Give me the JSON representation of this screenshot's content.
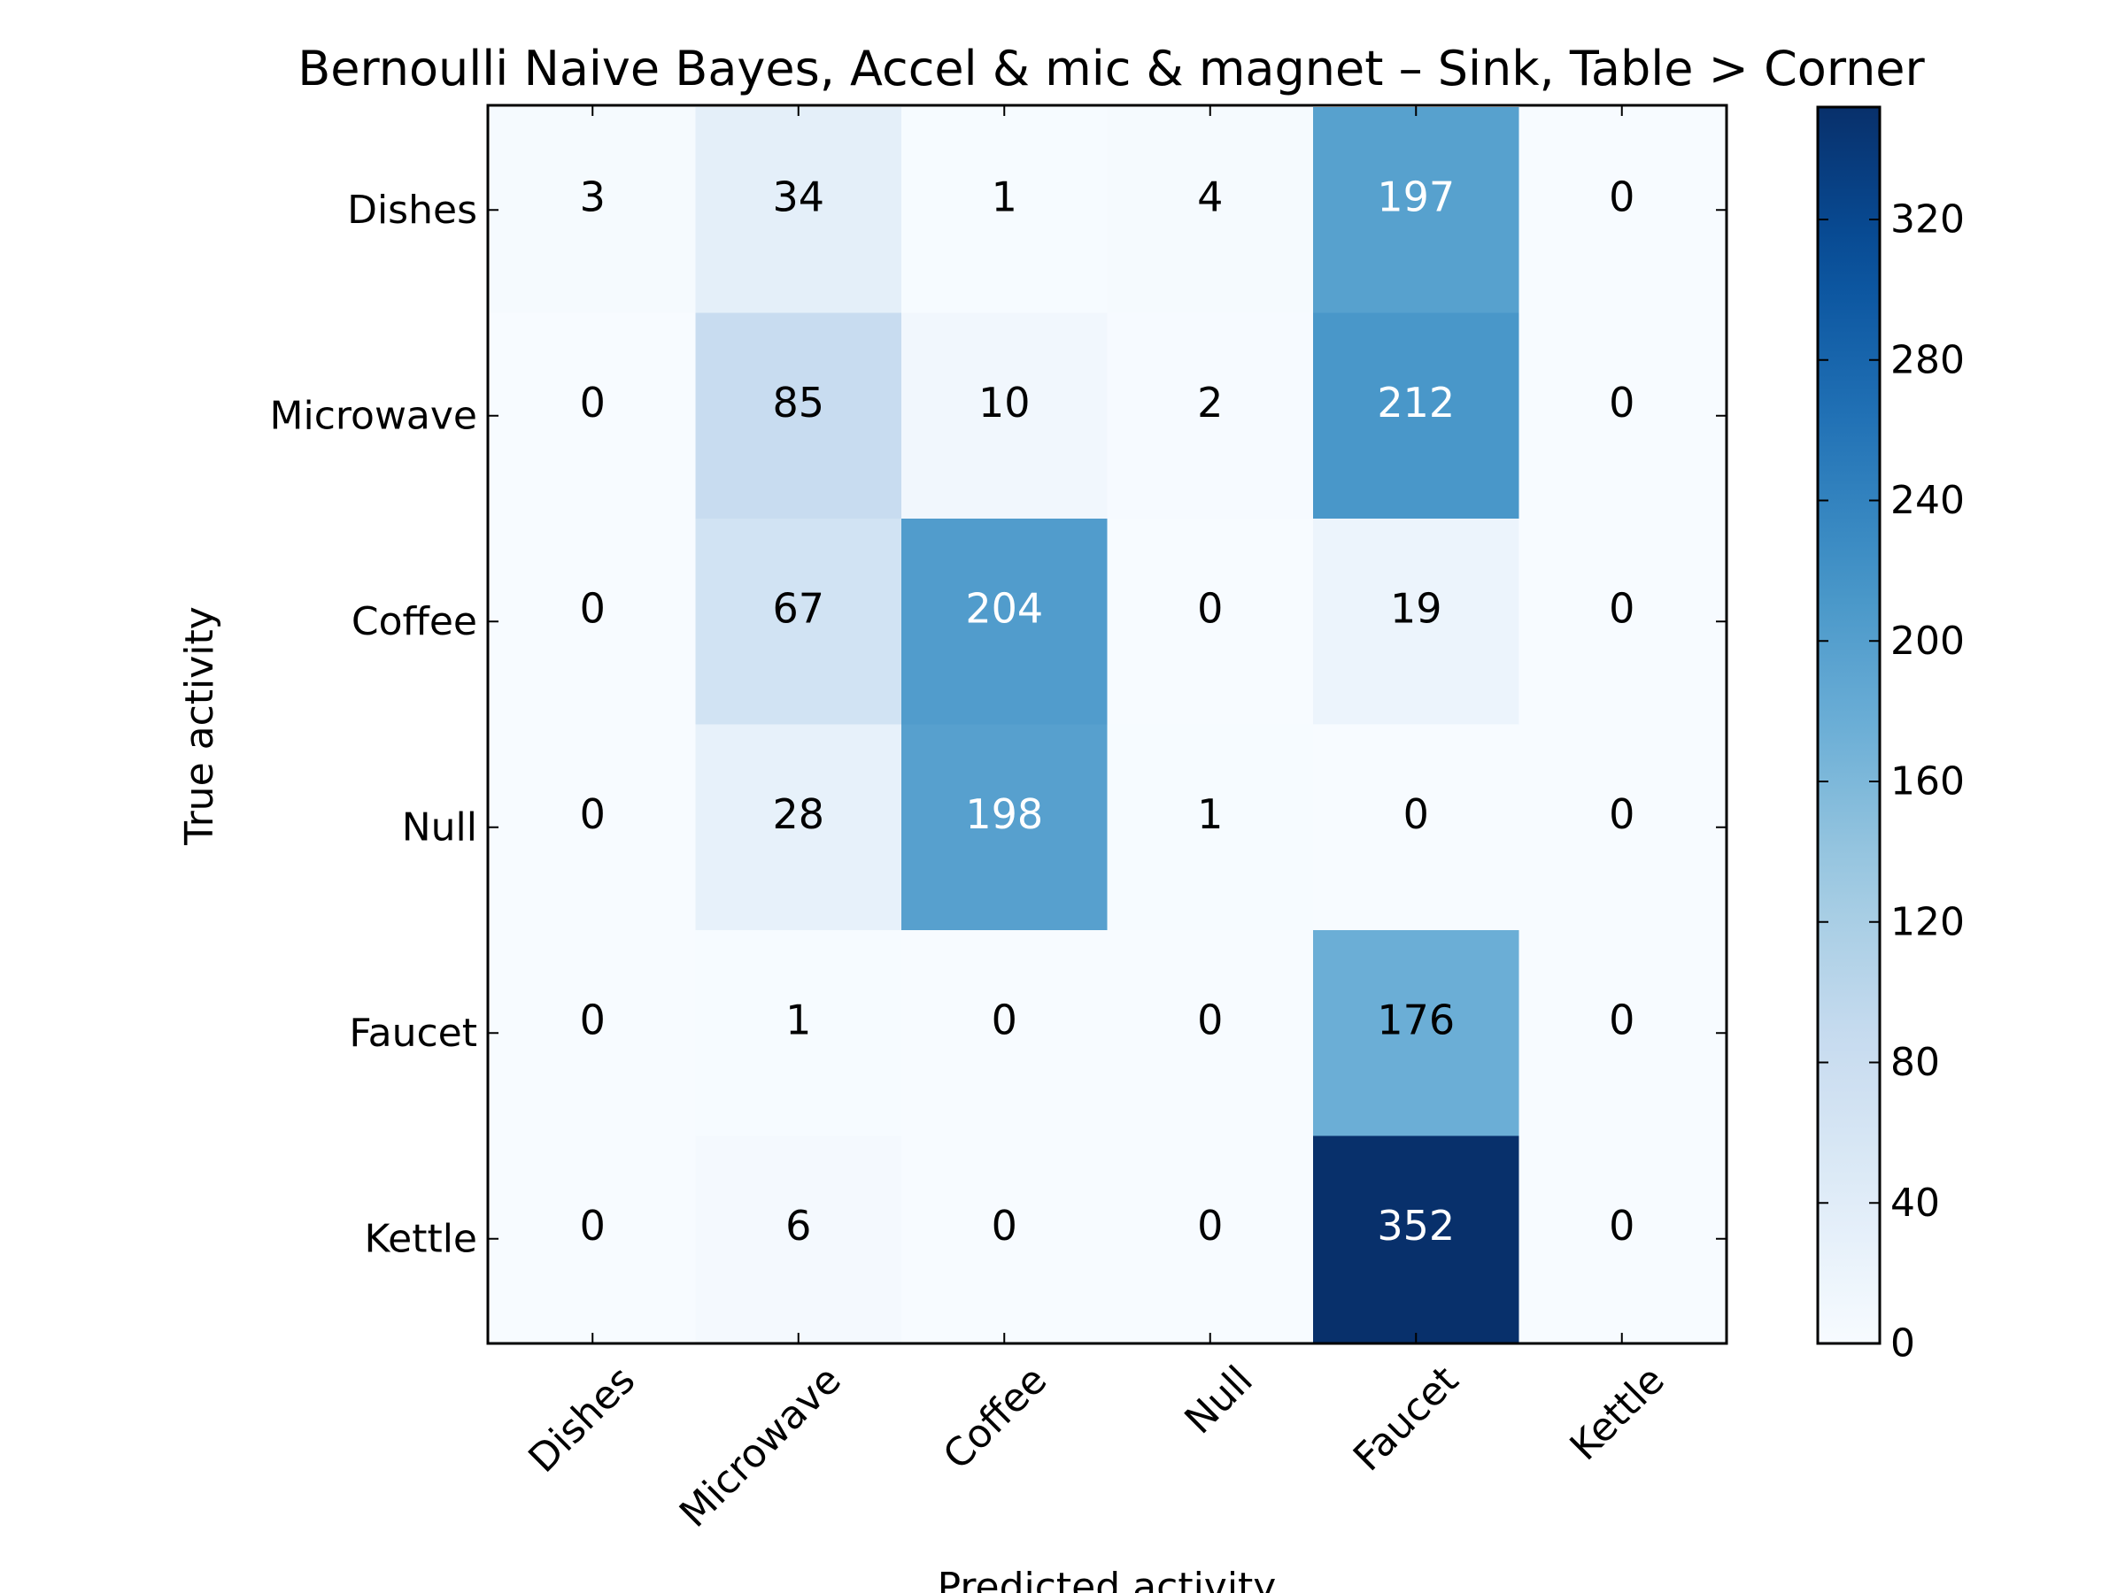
{
  "chart_data": {
    "type": "heatmap",
    "title": "Bernoulli Naive Bayes, Accel & mic & magnet – Sink, Table > Corner",
    "xlabel": "Predicted activity",
    "ylabel": "True activity",
    "x_categories": [
      "Dishes",
      "Microwave",
      "Coffee",
      "Null",
      "Faucet",
      "Kettle"
    ],
    "y_categories": [
      "Dishes",
      "Microwave",
      "Coffee",
      "Null",
      "Faucet",
      "Kettle"
    ],
    "values": [
      [
        3,
        34,
        1,
        4,
        197,
        0
      ],
      [
        0,
        85,
        10,
        2,
        212,
        0
      ],
      [
        0,
        67,
        204,
        0,
        19,
        0
      ],
      [
        0,
        28,
        198,
        1,
        0,
        0
      ],
      [
        0,
        1,
        0,
        0,
        176,
        0
      ],
      [
        0,
        6,
        0,
        0,
        352,
        0
      ]
    ],
    "colormap": "Blues",
    "colorbar": {
      "range": [
        0,
        352
      ],
      "ticks": [
        0,
        40,
        80,
        120,
        160,
        200,
        240,
        280,
        320
      ]
    },
    "grid": false
  }
}
